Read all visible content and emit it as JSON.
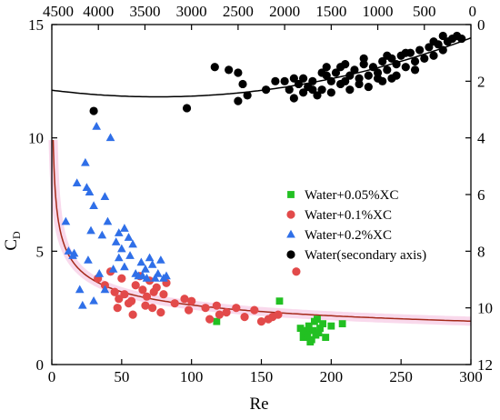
{
  "chart_data": {
    "type": "scatter",
    "xlabel": "Re",
    "ylabel": "C",
    "ylabel_sub": "D",
    "xlim": [
      0,
      300
    ],
    "ylim": [
      0,
      15
    ],
    "x_ticks": [
      0,
      50,
      100,
      150,
      200,
      250,
      300
    ],
    "y_ticks": [
      0,
      5,
      10,
      15
    ],
    "x2lim": [
      4500,
      0
    ],
    "y2lim": [
      12,
      0
    ],
    "x2_ticks": [
      4500,
      4000,
      3500,
      3000,
      2500,
      2000,
      1500,
      1000,
      500,
      0
    ],
    "y2_ticks": [
      0,
      2,
      4,
      6,
      8,
      10,
      12
    ],
    "legend_position": "center-right",
    "series": [
      {
        "name": "Water+0.05%XC",
        "color": "#22c022",
        "marker": "square",
        "axis": "primary",
        "points": [
          [
            118,
            1.9
          ],
          [
            163,
            2.8
          ],
          [
            178,
            1.6
          ],
          [
            180,
            1.2
          ],
          [
            182,
            1.4
          ],
          [
            184,
            1.7
          ],
          [
            186,
            1.1
          ],
          [
            187,
            1.5
          ],
          [
            188,
            1.9
          ],
          [
            189,
            1.3
          ],
          [
            190,
            2.0
          ],
          [
            192,
            1.6
          ],
          [
            194,
            1.8
          ],
          [
            196,
            1.2
          ],
          [
            200,
            1.7
          ],
          [
            208,
            1.8
          ],
          [
            180,
            1.5
          ],
          [
            185,
            1.0
          ],
          [
            183,
            1.3
          ],
          [
            191,
            1.4
          ]
        ]
      },
      {
        "name": "Water+0.1%XC",
        "color": "#e24a4a",
        "marker": "circle",
        "axis": "primary",
        "points": [
          [
            33,
            3.8
          ],
          [
            38,
            3.5
          ],
          [
            42,
            4.1
          ],
          [
            45,
            3.2
          ],
          [
            48,
            2.9
          ],
          [
            50,
            3.8
          ],
          [
            52,
            3.1
          ],
          [
            55,
            2.7
          ],
          [
            58,
            2.2
          ],
          [
            60,
            3.5
          ],
          [
            63,
            3.9
          ],
          [
            65,
            3.3
          ],
          [
            68,
            3.0
          ],
          [
            70,
            3.7
          ],
          [
            72,
            2.5
          ],
          [
            75,
            3.4
          ],
          [
            78,
            2.3
          ],
          [
            80,
            3.1
          ],
          [
            82,
            3.6
          ],
          [
            95,
            2.9
          ],
          [
            98,
            2.4
          ],
          [
            100,
            2.8
          ],
          [
            110,
            2.5
          ],
          [
            113,
            2.0
          ],
          [
            118,
            2.6
          ],
          [
            120,
            2.2
          ],
          [
            125,
            2.3
          ],
          [
            132,
            2.5
          ],
          [
            138,
            2.1
          ],
          [
            145,
            2.4
          ],
          [
            150,
            1.9
          ],
          [
            155,
            2.0
          ],
          [
            158,
            2.1
          ],
          [
            162,
            2.2
          ],
          [
            175,
            4.1
          ],
          [
            47,
            2.5
          ],
          [
            57,
            2.8
          ],
          [
            67,
            2.6
          ],
          [
            73,
            3.2
          ],
          [
            88,
            2.7
          ]
        ]
      },
      {
        "name": "Water+0.2%XC",
        "color": "#2f6fe8",
        "marker": "triangle",
        "axis": "primary",
        "points": [
          [
            10,
            6.3
          ],
          [
            12,
            5.0
          ],
          [
            16,
            4.9
          ],
          [
            18,
            8.0
          ],
          [
            20,
            3.3
          ],
          [
            22,
            2.6
          ],
          [
            24,
            8.9
          ],
          [
            25,
            7.8
          ],
          [
            27,
            7.6
          ],
          [
            28,
            5.9
          ],
          [
            30,
            2.8
          ],
          [
            30,
            7.0
          ],
          [
            32,
            10.5
          ],
          [
            34,
            4.0
          ],
          [
            36,
            5.7
          ],
          [
            38,
            7.4
          ],
          [
            38,
            3.3
          ],
          [
            40,
            6.3
          ],
          [
            42,
            10.0
          ],
          [
            44,
            4.2
          ],
          [
            46,
            5.4
          ],
          [
            48,
            5.8
          ],
          [
            48,
            4.7
          ],
          [
            50,
            5.1
          ],
          [
            52,
            6.0
          ],
          [
            52,
            4.3
          ],
          [
            55,
            5.6
          ],
          [
            56,
            4.8
          ],
          [
            58,
            5.3
          ],
          [
            60,
            4.0
          ],
          [
            62,
            3.9
          ],
          [
            64,
            4.5
          ],
          [
            65,
            3.9
          ],
          [
            67,
            4.2
          ],
          [
            68,
            3.8
          ],
          [
            70,
            4.7
          ],
          [
            72,
            4.4
          ],
          [
            74,
            3.8
          ],
          [
            76,
            4.0
          ],
          [
            78,
            4.6
          ],
          [
            80,
            3.8
          ],
          [
            82,
            3.9
          ],
          [
            15,
            4.8
          ],
          [
            26,
            4.6
          ]
        ]
      },
      {
        "name": "Water(secondary axis)",
        "color": "#000000",
        "marker": "circle",
        "axis": "secondary",
        "points": [
          [
            4050,
            3.05
          ],
          [
            3050,
            2.95
          ],
          [
            2750,
            1.5
          ],
          [
            2600,
            1.6
          ],
          [
            2500,
            1.7
          ],
          [
            2450,
            2.1
          ],
          [
            2500,
            2.7
          ],
          [
            2400,
            2.5
          ],
          [
            2000,
            2.0
          ],
          [
            1950,
            2.3
          ],
          [
            1900,
            1.9
          ],
          [
            1850,
            2.1
          ],
          [
            1800,
            1.9
          ],
          [
            1800,
            2.4
          ],
          [
            1750,
            2.2
          ],
          [
            1700,
            2.0
          ],
          [
            1650,
            2.5
          ],
          [
            1600,
            2.3
          ],
          [
            1550,
            1.8
          ],
          [
            1500,
            2.0
          ],
          [
            1500,
            2.4
          ],
          [
            1450,
            1.7
          ],
          [
            1400,
            2.1
          ],
          [
            1400,
            1.5
          ],
          [
            1350,
            2.0
          ],
          [
            1300,
            1.8
          ],
          [
            1300,
            2.3
          ],
          [
            1250,
            1.6
          ],
          [
            1200,
            1.9
          ],
          [
            1150,
            1.4
          ],
          [
            1100,
            1.8
          ],
          [
            1100,
            2.2
          ],
          [
            1050,
            1.5
          ],
          [
            1000,
            1.7
          ],
          [
            950,
            1.3
          ],
          [
            950,
            2.0
          ],
          [
            900,
            1.6
          ],
          [
            850,
            1.2
          ],
          [
            850,
            1.9
          ],
          [
            800,
            1.4
          ],
          [
            750,
            1.1
          ],
          [
            700,
            1.5
          ],
          [
            650,
            1.0
          ],
          [
            600,
            1.3
          ],
          [
            550,
            0.9
          ],
          [
            500,
            1.2
          ],
          [
            450,
            0.8
          ],
          [
            400,
            1.1
          ],
          [
            350,
            0.7
          ],
          [
            300,
            0.9
          ],
          [
            250,
            0.6
          ],
          [
            200,
            0.5
          ],
          [
            150,
            0.4
          ],
          [
            100,
            0.5
          ],
          [
            1700,
            2.3
          ],
          [
            1600,
            1.7
          ],
          [
            1200,
            2.1
          ],
          [
            1000,
            1.9
          ],
          [
            800,
            1.8
          ],
          [
            600,
            1.6
          ],
          [
            1900,
            2.6
          ],
          [
            2200,
            2.3
          ],
          [
            2100,
            2.0
          ],
          [
            700,
            1.0
          ],
          [
            900,
            1.1
          ],
          [
            1150,
            1.2
          ],
          [
            1350,
            1.4
          ],
          [
            1550,
            1.5
          ],
          [
            400,
            0.6
          ],
          [
            300,
            0.4
          ]
        ]
      }
    ],
    "fits": [
      {
        "series": "Water(secondary axis)",
        "axis": "secondary",
        "color": "#000000"
      },
      {
        "series": "Water+0.1%XC",
        "axis": "primary",
        "color": "#a52a1a"
      }
    ]
  }
}
